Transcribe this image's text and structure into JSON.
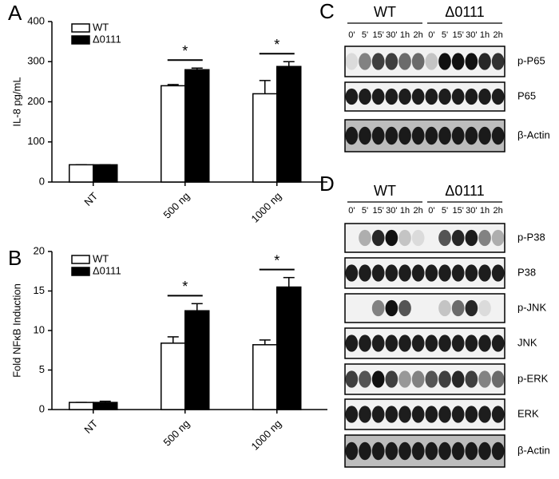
{
  "chart_data": [
    {
      "type": "bar",
      "panel_label": "A",
      "ylabel": "IL-8 pg/mL",
      "categories": [
        "NT",
        "500 ng",
        "1000 ng"
      ],
      "series": [
        {
          "name": "WT",
          "color": "#ffffff",
          "values": [
            43,
            240,
            220
          ],
          "errors": [
            0,
            3,
            33
          ]
        },
        {
          "name": "Δ0111",
          "color": "#000000",
          "values": [
            43,
            280,
            288
          ],
          "errors": [
            0,
            4,
            12
          ]
        }
      ],
      "ylim": [
        0,
        400
      ],
      "yticks": [
        0,
        100,
        200,
        300,
        400
      ],
      "annotations": [
        "*",
        "*"
      ]
    },
    {
      "type": "bar",
      "panel_label": "B",
      "ylabel": "Fold NFκB Induction",
      "categories": [
        "NT",
        "500 ng",
        "1000 ng"
      ],
      "series": [
        {
          "name": "WT",
          "color": "#ffffff",
          "values": [
            0.9,
            8.4,
            8.2
          ],
          "errors": [
            0,
            0.8,
            0.6
          ]
        },
        {
          "name": "Δ0111",
          "color": "#000000",
          "values": [
            0.9,
            12.5,
            15.5
          ],
          "errors": [
            0.15,
            0.9,
            1.2
          ]
        }
      ],
      "ylim": [
        0,
        20
      ],
      "yticks": [
        0,
        5,
        10,
        15,
        20
      ],
      "annotations": [
        "*",
        "*"
      ]
    }
  ],
  "blots": [
    {
      "panel_label": "C",
      "groups": [
        "WT",
        "Δ0111"
      ],
      "timepoints": [
        "0'",
        "5'",
        "15'",
        "30'",
        "1h",
        "2h"
      ],
      "rows": [
        "p-P65",
        "P65",
        "β-Actin"
      ]
    },
    {
      "panel_label": "D",
      "groups": [
        "WT",
        "Δ0111"
      ],
      "timepoints": [
        "0'",
        "5'",
        "15'",
        "30'",
        "1h",
        "2h"
      ],
      "rows": [
        "p-P38",
        "P38",
        "p-JNK",
        "JNK",
        "p-ERK",
        "ERK",
        "β-Actin"
      ]
    }
  ]
}
